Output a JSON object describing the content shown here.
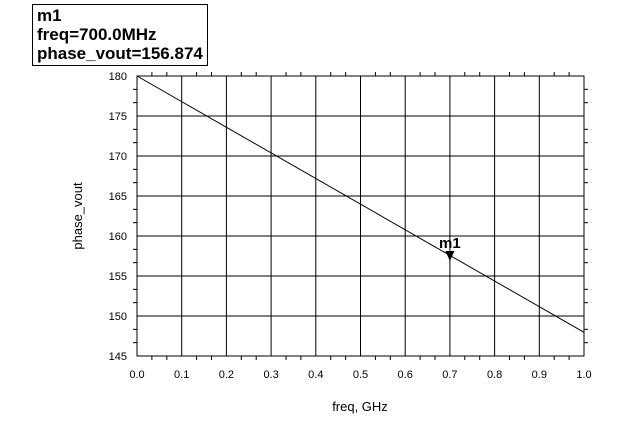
{
  "chart_data": {
    "type": "line",
    "xlabel": "freq, GHz",
    "ylabel": "phase_vout",
    "xlim": [
      0.0,
      1.0
    ],
    "ylim": [
      145,
      180
    ],
    "xticks": [
      0.0,
      0.1,
      0.2,
      0.3,
      0.4,
      0.5,
      0.6,
      0.7,
      0.8,
      0.9,
      1.0
    ],
    "xtick_labels": [
      "0.0",
      "0.1",
      "0.2",
      "0.3",
      "0.4",
      "0.5",
      "0.6",
      "0.7",
      "0.8",
      "0.9",
      "1.0"
    ],
    "yticks": [
      145,
      150,
      155,
      160,
      165,
      170,
      175,
      180
    ],
    "yticks_labels": [
      "145",
      "150",
      "155",
      "160",
      "165",
      "170",
      "175",
      "180"
    ],
    "minor_per_major": 2,
    "grid": true,
    "series": [
      {
        "name": "phase_vout",
        "x": [
          0.0,
          1.0
        ],
        "y": [
          180.0,
          147.964
        ]
      }
    ],
    "marker": {
      "name": "m1",
      "x": 0.7,
      "y": 156.874,
      "readout_lines": [
        "m1",
        "freq=700.0MHz",
        "phase_vout=156.874"
      ]
    }
  }
}
